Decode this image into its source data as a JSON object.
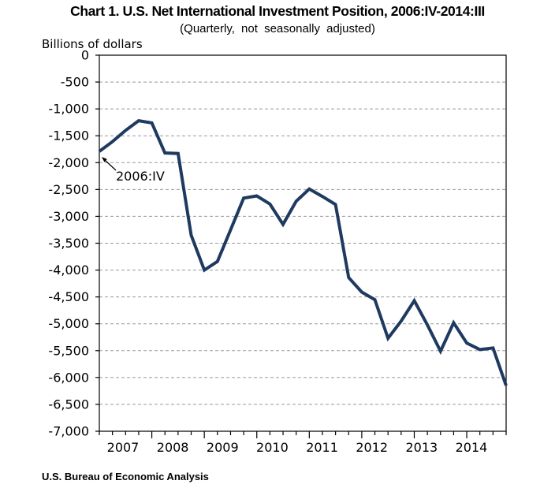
{
  "footer": {
    "source": "U.S. Bureau of Economic Analysis"
  },
  "colors": {
    "line": "#1f3a60",
    "grid": "#999999",
    "axis": "#000000",
    "text": "#000000",
    "background": "#ffffff"
  },
  "chart_data": {
    "type": "line",
    "title": "Chart 1. U.S. Net International Investment Position, 2006:IV-2014:III",
    "subtitle": "(Quarterly, not seasonally adjusted)",
    "ylabel": "Billions of dollars",
    "xlabel": "",
    "ylim": [
      -7000,
      0
    ],
    "y_tick_interval": 500,
    "y_tick_labels": [
      "0",
      "-500",
      "-1,000",
      "-1,500",
      "-2,000",
      "-2,500",
      "-3,000",
      "-3,500",
      "-4,000",
      "-4,500",
      "-5,000",
      "-5,500",
      "-6,000",
      "-6,500",
      "-7,000"
    ],
    "x_year_labels": [
      "2007",
      "2008",
      "2009",
      "2010",
      "2011",
      "2012",
      "2013",
      "2014"
    ],
    "grid": "horizontal-dashed",
    "legend": "none",
    "annotation": {
      "label": "2006:IV",
      "points_to": "2006:IV"
    },
    "x": [
      "2006:IV",
      "2007:I",
      "2007:II",
      "2007:III",
      "2007:IV",
      "2008:I",
      "2008:II",
      "2008:III",
      "2008:IV",
      "2009:I",
      "2009:II",
      "2009:III",
      "2009:IV",
      "2010:I",
      "2010:II",
      "2010:III",
      "2010:IV",
      "2011:I",
      "2011:II",
      "2011:III",
      "2011:IV",
      "2012:I",
      "2012:II",
      "2012:III",
      "2012:IV",
      "2013:I",
      "2013:II",
      "2013:III",
      "2013:IV",
      "2014:I",
      "2014:II",
      "2014:III"
    ],
    "series": [
      {
        "name": "U.S. net international investment position",
        "values": [
          -1790,
          -1610,
          -1400,
          -1220,
          -1260,
          -1820,
          -1830,
          -3350,
          -4000,
          -3840,
          -3250,
          -2660,
          -2620,
          -2770,
          -3150,
          -2720,
          -2490,
          -2630,
          -2780,
          -4140,
          -4410,
          -4550,
          -5270,
          -4950,
          -4570,
          -5020,
          -5510,
          -4980,
          -5360,
          -5480,
          -5450,
          -6150
        ]
      }
    ]
  }
}
